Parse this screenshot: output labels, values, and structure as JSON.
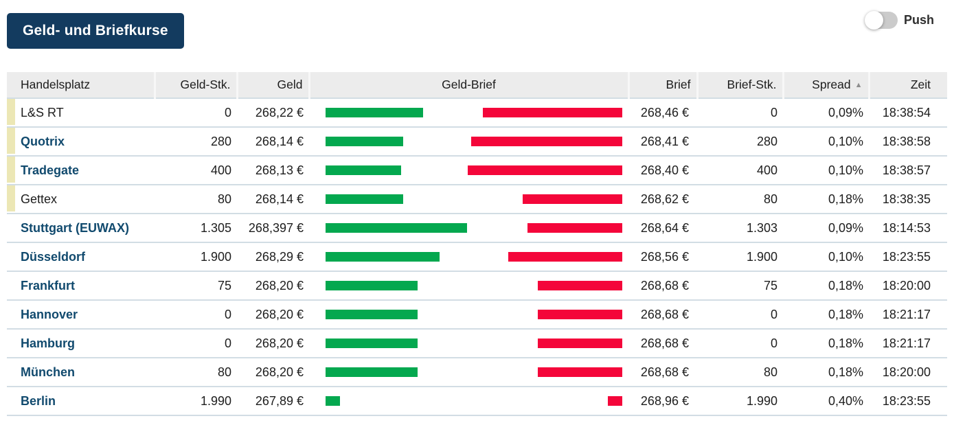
{
  "header": {
    "title": "Geld- und Briefkurse",
    "push_label": "Push",
    "push_state": "off"
  },
  "table": {
    "columns": [
      {
        "label": "Handelsplatz"
      },
      {
        "label": "Geld-Stk."
      },
      {
        "label": "Geld"
      },
      {
        "label": "Geld-Brief"
      },
      {
        "label": "Brief"
      },
      {
        "label": "Brief-Stk."
      },
      {
        "label": "Spread",
        "sorted": "asc"
      },
      {
        "label": "Zeit"
      }
    ],
    "sort_icon": "▲",
    "colors": {
      "green_bar": "#04a84f",
      "red_bar": "#f4063a",
      "highlight": "#ece7b5",
      "link": "#114a6e",
      "navy": "#133b5f",
      "separator": "#d2dde4",
      "header_bg": "#ececec"
    },
    "rows": [
      {
        "handelsplatz": "L&S RT",
        "is_link": false,
        "highlight": true,
        "geld_stk": "0",
        "geld": "268,22 €",
        "brief": "268,46 €",
        "brief_stk": "0",
        "spread": "0,09%",
        "zeit": "18:38:54",
        "bar_green_pct": 32.9,
        "bar_red_pct": 47.0
      },
      {
        "handelsplatz": "Quotrix",
        "is_link": true,
        "highlight": true,
        "geld_stk": "280",
        "geld": "268,14 €",
        "brief": "268,41 €",
        "brief_stk": "280",
        "spread": "0,10%",
        "zeit": "18:38:58",
        "bar_green_pct": 26.2,
        "bar_red_pct": 51.0
      },
      {
        "handelsplatz": "Tradegate",
        "is_link": true,
        "highlight": true,
        "geld_stk": "400",
        "geld": "268,13 €",
        "brief": "268,40 €",
        "brief_stk": "400",
        "spread": "0,10%",
        "zeit": "18:38:57",
        "bar_green_pct": 25.5,
        "bar_red_pct": 52.1
      },
      {
        "handelsplatz": "Gettex",
        "is_link": false,
        "highlight": true,
        "geld_stk": "80",
        "geld": "268,14 €",
        "brief": "268,62 €",
        "brief_stk": "80",
        "spread": "0,18%",
        "zeit": "18:38:35",
        "bar_green_pct": 26.2,
        "bar_red_pct": 33.6
      },
      {
        "handelsplatz": "Stuttgart (EUWAX)",
        "is_link": true,
        "highlight": false,
        "geld_stk": "1.305",
        "geld": "268,397 €",
        "brief": "268,64 €",
        "brief_stk": "1.303",
        "spread": "0,09%",
        "zeit": "18:14:53",
        "bar_green_pct": 47.7,
        "bar_red_pct": 31.9
      },
      {
        "handelsplatz": "Düsseldorf",
        "is_link": true,
        "highlight": false,
        "geld_stk": "1.900",
        "geld": "268,29 €",
        "brief": "268,56 €",
        "brief_stk": "1.900",
        "spread": "0,10%",
        "zeit": "18:23:55",
        "bar_green_pct": 38.4,
        "bar_red_pct": 38.4
      },
      {
        "handelsplatz": "Frankfurt",
        "is_link": true,
        "highlight": false,
        "geld_stk": "75",
        "geld": "268,20 €",
        "brief": "268,68 €",
        "brief_stk": "75",
        "spread": "0,18%",
        "zeit": "18:20:00",
        "bar_green_pct": 31.0,
        "bar_red_pct": 28.5
      },
      {
        "handelsplatz": "Hannover",
        "is_link": true,
        "highlight": false,
        "geld_stk": "0",
        "geld": "268,20 €",
        "brief": "268,68 €",
        "brief_stk": "0",
        "spread": "0,18%",
        "zeit": "18:21:17",
        "bar_green_pct": 31.0,
        "bar_red_pct": 28.5
      },
      {
        "handelsplatz": "Hamburg",
        "is_link": true,
        "highlight": false,
        "geld_stk": "0",
        "geld": "268,20 €",
        "brief": "268,68 €",
        "brief_stk": "0",
        "spread": "0,18%",
        "zeit": "18:21:17",
        "bar_green_pct": 31.0,
        "bar_red_pct": 28.5
      },
      {
        "handelsplatz": "München",
        "is_link": true,
        "highlight": false,
        "geld_stk": "80",
        "geld": "268,20 €",
        "brief": "268,68 €",
        "brief_stk": "80",
        "spread": "0,18%",
        "zeit": "18:20:00",
        "bar_green_pct": 31.0,
        "bar_red_pct": 28.5
      },
      {
        "handelsplatz": "Berlin",
        "is_link": true,
        "highlight": false,
        "geld_stk": "1.990",
        "geld": "267,89 €",
        "brief": "268,96 €",
        "brief_stk": "1.990",
        "spread": "0,40%",
        "zeit": "18:23:55",
        "bar_green_pct": 4.9,
        "bar_red_pct": 4.9
      }
    ]
  }
}
